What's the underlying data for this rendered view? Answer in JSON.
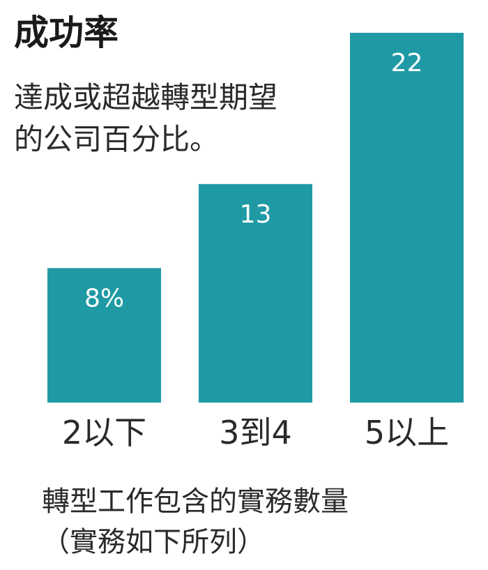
{
  "chart_data": {
    "type": "bar",
    "title": "成功率",
    "subtitle_lines": [
      "達成或超越轉型期望",
      "的公司百分比。"
    ],
    "categories": [
      "2以下",
      "3到4",
      "5以上"
    ],
    "values": [
      8,
      13,
      22
    ],
    "value_labels": [
      "8%",
      "13",
      "22"
    ],
    "xlabel_lines": [
      "轉型工作包含的實務數量",
      "（實務如下所列）"
    ],
    "ylabel": "",
    "ylim": [
      0,
      22
    ],
    "bar_color": "#1f9aa5",
    "grid": false,
    "legend": "none"
  }
}
